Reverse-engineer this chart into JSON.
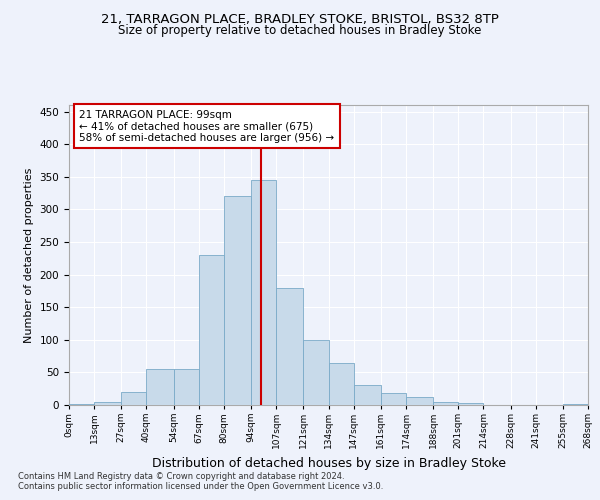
{
  "title1": "21, TARRAGON PLACE, BRADLEY STOKE, BRISTOL, BS32 8TP",
  "title2": "Size of property relative to detached houses in Bradley Stoke",
  "xlabel": "Distribution of detached houses by size in Bradley Stoke",
  "ylabel": "Number of detached properties",
  "footnote1": "Contains HM Land Registry data © Crown copyright and database right 2024.",
  "footnote2": "Contains public sector information licensed under the Open Government Licence v3.0.",
  "bin_labels": [
    "0sqm",
    "13sqm",
    "27sqm",
    "40sqm",
    "54sqm",
    "67sqm",
    "80sqm",
    "94sqm",
    "107sqm",
    "121sqm",
    "134sqm",
    "147sqm",
    "161sqm",
    "174sqm",
    "188sqm",
    "201sqm",
    "214sqm",
    "228sqm",
    "241sqm",
    "255sqm",
    "268sqm"
  ],
  "bar_heights": [
    1,
    5,
    20,
    55,
    55,
    230,
    320,
    345,
    180,
    100,
    65,
    30,
    18,
    12,
    5,
    3,
    0,
    0,
    0,
    1
  ],
  "bin_edges": [
    0,
    13,
    27,
    40,
    54,
    67,
    80,
    94,
    107,
    121,
    134,
    147,
    161,
    174,
    188,
    201,
    214,
    228,
    241,
    255,
    268
  ],
  "property_size": 99,
  "annotation_title": "21 TARRAGON PLACE: 99sqm",
  "annotation_line1": "← 41% of detached houses are smaller (675)",
  "annotation_line2": "58% of semi-detached houses are larger (956) →",
  "bar_color": "#c8daea",
  "bar_edge_color": "#7aaac8",
  "red_line_color": "#cc0000",
  "ylim": [
    0,
    460
  ],
  "yticks": [
    0,
    50,
    100,
    150,
    200,
    250,
    300,
    350,
    400,
    450
  ],
  "background_color": "#eef2fb",
  "grid_color": "#ffffff",
  "title1_fontsize": 9.5,
  "title2_fontsize": 8.5,
  "xlabel_fontsize": 9,
  "ylabel_fontsize": 8
}
